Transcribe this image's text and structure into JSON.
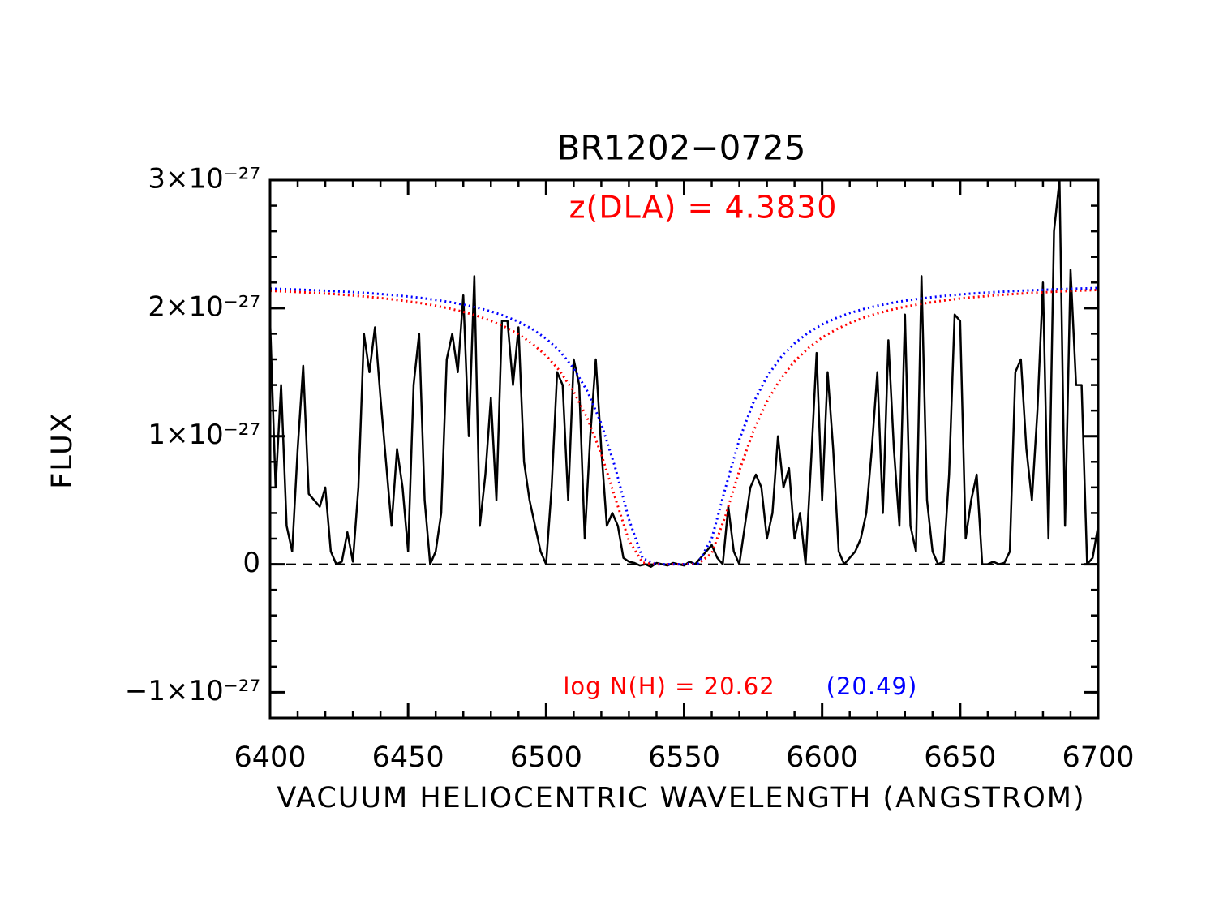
{
  "chart_data": {
    "type": "line",
    "title": "BR1202−0725",
    "xlabel": "VACUUM HELIOCENTRIC WAVELENGTH (ANGSTROM)",
    "ylabel": "FLUX",
    "annotations": [
      {
        "text": "z(DLA) = 4.3830",
        "color": "#ff0000"
      },
      {
        "text": "log N(H) = 20.62",
        "color": "#ff0000"
      },
      {
        "text": "(20.49)",
        "color": "#0000ff"
      }
    ],
    "xlim": [
      6400,
      6700
    ],
    "xticks": [
      6400,
      6450,
      6500,
      6550,
      6600,
      6650,
      6700
    ],
    "xminor_step": 10,
    "ylim": [
      -1.2e-27,
      3e-27
    ],
    "yticks": [
      {
        "value": -1e-27,
        "label": "−1×10⁻²⁷"
      },
      0,
      {
        "value": 1e-27,
        "label": "1×10⁻²⁷"
      },
      {
        "value": 2e-27,
        "label": "2×10⁻²⁷"
      },
      {
        "value": 3e-27,
        "label": "3×10⁻²⁷"
      }
    ],
    "yminor_step": 2e-28,
    "reference_line": {
      "y": 0,
      "style": "dashed",
      "color": "#000000"
    },
    "series": [
      {
        "color": "#000000",
        "style": "solid",
        "x": [
          6400,
          6402,
          6404,
          6406,
          6408,
          6410,
          6412,
          6414,
          6416,
          6418,
          6420,
          6422,
          6424,
          6426,
          6428,
          6430,
          6432,
          6434,
          6436,
          6438,
          6440,
          6442,
          6444,
          6446,
          6448,
          6450,
          6452,
          6454,
          6456,
          6458,
          6460,
          6462,
          6464,
          6466,
          6468,
          6470,
          6472,
          6474,
          6476,
          6478,
          6480,
          6482,
          6484,
          6486,
          6488,
          6490,
          6492,
          6494,
          6496,
          6498,
          6500,
          6502,
          6504,
          6506,
          6508,
          6510,
          6512,
          6514,
          6516,
          6518,
          6520,
          6522,
          6524,
          6526,
          6528,
          6530,
          6532,
          6534,
          6536,
          6538,
          6540,
          6542,
          6544,
          6546,
          6548,
          6550,
          6552,
          6554,
          6556,
          6558,
          6560,
          6562,
          6564,
          6566,
          6568,
          6570,
          6572,
          6574,
          6576,
          6578,
          6580,
          6582,
          6584,
          6586,
          6588,
          6590,
          6592,
          6594,
          6596,
          6598,
          6600,
          6602,
          6604,
          6606,
          6608,
          6610,
          6612,
          6614,
          6616,
          6618,
          6620,
          6622,
          6624,
          6626,
          6628,
          6630,
          6632,
          6634,
          6636,
          6638,
          6640,
          6642,
          6644,
          6646,
          6648,
          6650,
          6652,
          6654,
          6656,
          6658,
          6660,
          6662,
          6664,
          6666,
          6668,
          6670,
          6672,
          6674,
          6676,
          6678,
          6680,
          6682,
          6684,
          6686,
          6688,
          6690,
          6692,
          6694,
          6696,
          6698,
          6700
        ],
        "values": [
          1.9e-27,
          6e-28,
          1.4e-27,
          3e-28,
          1e-28,
          9e-28,
          1.55e-27,
          5.5e-28,
          5e-28,
          4.5e-28,
          6e-28,
          1e-28,
          0,
          2e-29,
          2.5e-28,
          2e-29,
          6e-28,
          1.8e-27,
          1.5e-27,
          1.85e-27,
          1.3e-27,
          8e-28,
          3e-28,
          9e-28,
          6e-28,
          1e-28,
          1.4e-27,
          1.8e-27,
          5e-28,
          0,
          1e-28,
          4e-28,
          1.6e-27,
          1.8e-27,
          1.5e-27,
          2.1e-27,
          1e-27,
          2.25e-27,
          3e-28,
          7e-28,
          1.3e-27,
          5e-28,
          1.9e-27,
          1.9e-27,
          1.4e-27,
          1.85e-27,
          8e-28,
          5e-28,
          3e-28,
          1e-28,
          0,
          6e-28,
          1.5e-27,
          1.4e-27,
          5e-28,
          1.6e-27,
          1.4e-27,
          2e-28,
          1e-27,
          1.6e-27,
          9e-28,
          3e-28,
          4e-28,
          3e-28,
          5e-29,
          2e-29,
          1e-29,
          -1e-29,
          0,
          -2e-29,
          1e-29,
          0,
          -1e-29,
          1e-29,
          0,
          -1e-29,
          2e-29,
          0,
          5e-29,
          1e-28,
          1.5e-28,
          5e-29,
          0,
          4.5e-28,
          1e-28,
          0,
          3e-28,
          6e-28,
          7e-28,
          6e-28,
          2e-28,
          4e-28,
          1e-27,
          6e-28,
          7.5e-28,
          2e-28,
          4e-28,
          0,
          8e-28,
          1.65e-27,
          5e-28,
          1.5e-27,
          9e-28,
          1e-28,
          0,
          5e-29,
          1e-28,
          2e-28,
          4e-28,
          9e-28,
          1.5e-27,
          4e-28,
          1.75e-27,
          9e-28,
          3e-28,
          1.95e-27,
          3e-28,
          1e-28,
          2.25e-27,
          5e-28,
          1e-28,
          0,
          2e-29,
          7e-28,
          1.95e-27,
          1.9e-27,
          2e-28,
          5e-28,
          7e-28,
          0,
          0,
          2e-29,
          0,
          1e-29,
          1e-28,
          1.5e-27,
          1.6e-27,
          9e-28,
          5e-28,
          1.2e-27,
          2.2e-27,
          2e-28,
          2.6e-27,
          3e-27,
          3e-28,
          2.3e-27,
          1.4e-27,
          1.4e-27,
          0,
          5e-29,
          3e-28
        ]
      },
      {
        "color": "#ff0000",
        "style": "dotted",
        "x": [
          6400,
          6405,
          6410,
          6415,
          6420,
          6425,
          6430,
          6435,
          6440,
          6445,
          6450,
          6455,
          6460,
          6465,
          6470,
          6475,
          6480,
          6485,
          6490,
          6495,
          6500,
          6505,
          6510,
          6515,
          6520,
          6525,
          6530,
          6535,
          6540,
          6545,
          6550,
          6555,
          6560,
          6565,
          6570,
          6575,
          6580,
          6585,
          6590,
          6595,
          6600,
          6605,
          6610,
          6615,
          6620,
          6625,
          6630,
          6635,
          6640,
          6645,
          6650,
          6655,
          6660,
          6665,
          6670,
          6675,
          6680,
          6685,
          6690,
          6695,
          6700
        ],
        "values": [
          2.135e-27,
          2.131e-27,
          2.126e-27,
          2.12e-27,
          2.114e-27,
          2.107e-27,
          2.099e-27,
          2.09e-27,
          2.079e-27,
          2.067e-27,
          2.053e-27,
          2.038e-27,
          2.019e-27,
          1.997e-27,
          1.971e-27,
          1.94e-27,
          1.901e-27,
          1.855e-27,
          1.797e-27,
          1.722e-27,
          1.63e-27,
          1.509e-27,
          1.348e-27,
          1.138e-27,
          8.6e-28,
          5.21e-28,
          1.84e-28,
          1.2e-29,
          0,
          0,
          0,
          1e-30,
          8.6e-29,
          3.79e-28,
          7.31e-28,
          1.034e-27,
          1.27e-27,
          1.449e-27,
          1.585e-27,
          1.688e-27,
          1.77e-27,
          1.833e-27,
          1.884e-27,
          1.925e-27,
          1.959e-27,
          1.987e-27,
          2.011e-27,
          2.03e-27,
          2.047e-27,
          2.062e-27,
          2.075e-27,
          2.086e-27,
          2.095e-27,
          2.104e-27,
          2.111e-27,
          2.118e-27,
          2.123e-27,
          2.129e-27,
          2.134e-27,
          2.138e-27,
          2.142e-27
        ]
      },
      {
        "color": "#0000ff",
        "style": "dotted",
        "x": [
          6400,
          6405,
          6410,
          6415,
          6420,
          6425,
          6430,
          6435,
          6440,
          6445,
          6450,
          6455,
          6460,
          6465,
          6470,
          6475,
          6480,
          6485,
          6490,
          6495,
          6500,
          6505,
          6510,
          6515,
          6520,
          6525,
          6530,
          6535,
          6540,
          6545,
          6550,
          6555,
          6560,
          6565,
          6570,
          6575,
          6580,
          6585,
          6590,
          6595,
          6600,
          6605,
          6610,
          6615,
          6620,
          6625,
          6630,
          6635,
          6640,
          6645,
          6650,
          6655,
          6660,
          6665,
          6670,
          6675,
          6680,
          6685,
          6690,
          6695,
          6700
        ],
        "values": [
          2.152e-27,
          2.149e-27,
          2.145e-27,
          2.141e-27,
          2.136e-27,
          2.13e-27,
          2.125e-27,
          2.118e-27,
          2.11e-27,
          2.101e-27,
          2.091e-27,
          2.079e-27,
          2.064e-27,
          2.048e-27,
          2.028e-27,
          2.004e-27,
          1.975e-27,
          1.939e-27,
          1.894e-27,
          1.837e-27,
          1.762e-27,
          1.664e-27,
          1.53e-27,
          1.349e-27,
          1.098e-27,
          7.58e-28,
          3.51e-28,
          4.5e-29,
          0,
          0,
          0,
          7e-30,
          2e-28,
          5.98e-28,
          9.74e-28,
          1.258e-27,
          1.465e-27,
          1.615e-27,
          1.725e-27,
          1.809e-27,
          1.873e-27,
          1.922e-27,
          1.962e-27,
          1.993e-27,
          2.019e-27,
          2.04e-27,
          2.058e-27,
          2.073e-27,
          2.086e-27,
          2.097e-27,
          2.107e-27,
          2.115e-27,
          2.122e-27,
          2.128e-27,
          2.134e-27,
          2.139e-27,
          2.143e-27,
          2.147e-27,
          2.151e-27,
          2.154e-27,
          2.157e-27
        ]
      }
    ]
  }
}
